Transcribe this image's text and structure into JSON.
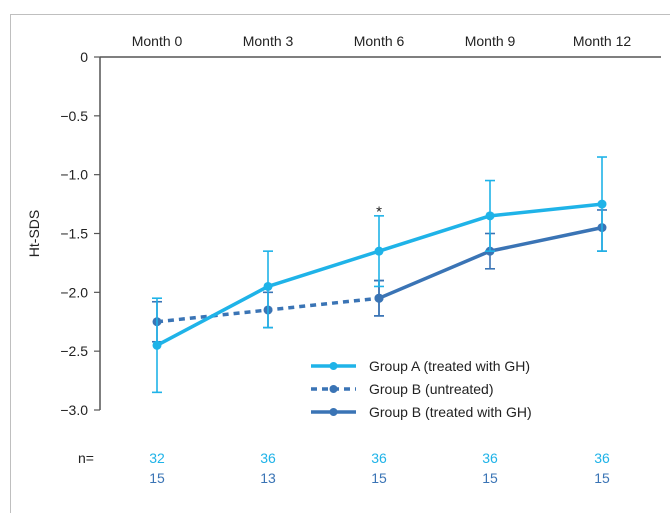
{
  "chart_data": {
    "type": "line",
    "title": "",
    "xlabel": "",
    "ylabel": "Ht-SDS",
    "categories": [
      "Month 0",
      "Month 3",
      "Month 6",
      "Month 9",
      "Month 12"
    ],
    "ylim": [
      -3.0,
      0
    ],
    "yticks": [
      {
        "value": 0,
        "label": "0"
      },
      {
        "value": -0.5,
        "label": "−0.5"
      },
      {
        "value": -1.0,
        "label": "−1.0"
      },
      {
        "value": -1.5,
        "label": "−1.5"
      },
      {
        "value": -2.0,
        "label": "−2.0"
      },
      {
        "value": -2.5,
        "label": "−2.5"
      },
      {
        "value": -3.0,
        "label": "−3.0"
      }
    ],
    "x_axis_position": "top",
    "grid": false,
    "legend_position": "bottom-right",
    "series": [
      {
        "name": "Group A (treated with GH)",
        "color": "#1fb3e8",
        "style": "solid",
        "values": [
          -2.45,
          -1.95,
          -1.65,
          -1.35,
          -1.25
        ],
        "error_low": [
          -2.85,
          -2.3,
          -1.95,
          -1.65,
          -1.65
        ],
        "error_high": [
          -2.05,
          -1.65,
          -1.35,
          -1.05,
          -0.85
        ]
      },
      {
        "name": "Group B (untreated)",
        "color": "#3a74b5",
        "style": "dashed",
        "values": [
          -2.25,
          -2.15,
          -2.05,
          null,
          null
        ],
        "error_low": [
          -2.42,
          -2.3,
          -2.2,
          null,
          null
        ],
        "error_high": [
          -2.08,
          -2.0,
          -1.9,
          null,
          null
        ]
      },
      {
        "name": "Group B (treated with GH)",
        "color": "#3a74b5",
        "style": "solid",
        "values": [
          null,
          null,
          -2.05,
          -1.65,
          -1.45
        ],
        "error_low": [
          null,
          null,
          -2.2,
          -1.8,
          -1.65
        ],
        "error_high": [
          null,
          null,
          -1.9,
          -1.5,
          -1.3
        ]
      }
    ],
    "annotations": [
      {
        "text": "*",
        "category": "Month 6",
        "y": -1.32
      }
    ],
    "n_label": "n=",
    "n_rows": [
      {
        "values": [
          "32",
          "36",
          "36",
          "36",
          "36"
        ],
        "color": "#1fb3e8"
      },
      {
        "values": [
          "15",
          "13",
          "15",
          "15",
          "15"
        ],
        "color": "#3a74b5"
      }
    ]
  }
}
